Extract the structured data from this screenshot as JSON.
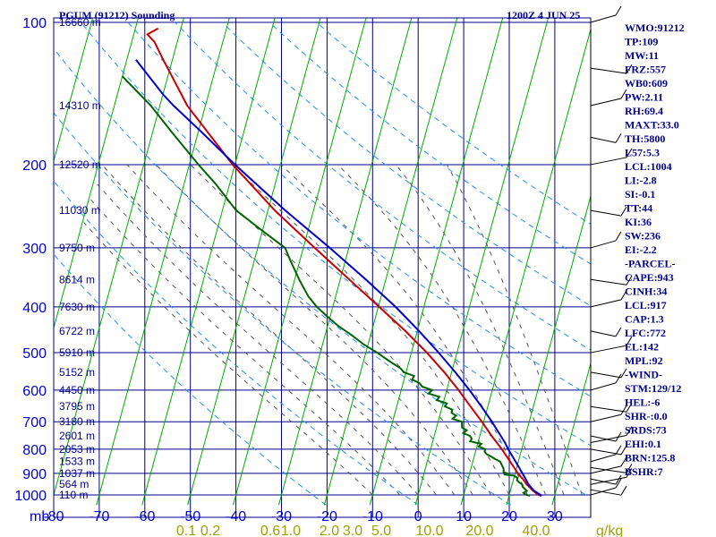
{
  "header": {
    "station_title": "PGUM (91212) Sounding",
    "valid_time": "1200Z  4 JUN 25"
  },
  "indices": [
    "WMO:91212",
    "TP:109",
    "MW:11",
    "FRZ:557",
    "WB0:609",
    "PW:2.11",
    "RH:69.4",
    "MAXT:33.0",
    "TH:5800",
    "L57:5.3",
    "LCL:1004",
    "LI:-2.8",
    "SI:-0.1",
    "TT:44",
    "KI:36",
    "SW:236",
    "EI:-2.2",
    "-PARCEL-",
    "CAPE:943",
    "CINH:34",
    "LCL:917",
    "CAP:1.3",
    "LFC:772",
    "EL:142",
    "MPL:92",
    "-WIND-",
    "STM:129/12",
    "HEL:-6",
    "SHR-:0.0",
    "SRDS:73",
    "EHI:0.1",
    "BRN:125.8",
    "BSHR:7"
  ],
  "colors": {
    "isobar": "#00008b",
    "isotherm": "#00aa00",
    "dry_adiabat": "#1e90ff",
    "moist_adiabat": "#555555",
    "mixing_ratio_label": "#a0a000",
    "temperature": "#cc0000",
    "dewpoint": "#006400",
    "parcel": "#0000cd",
    "wind_barb": "#000000"
  },
  "chart_data": {
    "type": "line",
    "subtype": "skew-T log-p sounding",
    "title": "PGUM (91212) Sounding",
    "x_unit": "mb",
    "y_axis_scale": "log pressure",
    "pressure_ticks": [
      100,
      200,
      300,
      400,
      500,
      600,
      700,
      800,
      900,
      1000
    ],
    "temperature_ticks": [
      -80,
      -70,
      -60,
      -50,
      -40,
      -30,
      -20,
      -10,
      0,
      10,
      20,
      30
    ],
    "temperature_range": [
      -80,
      40
    ],
    "pressure_range": [
      100,
      1050
    ],
    "height_labels": [
      {
        "p": 100,
        "label": "16660 m"
      },
      {
        "p": 150,
        "label": "14310 m"
      },
      {
        "p": 200,
        "label": "12520 m"
      },
      {
        "p": 250,
        "label": "11030 m"
      },
      {
        "p": 300,
        "label": "9750 m"
      },
      {
        "p": 350,
        "label": "8614 m"
      },
      {
        "p": 400,
        "label": "7630 m"
      },
      {
        "p": 450,
        "label": "6722 m"
      },
      {
        "p": 500,
        "label": "5910 m"
      },
      {
        "p": 550,
        "label": "5152 m"
      },
      {
        "p": 600,
        "label": "4450 m"
      },
      {
        "p": 650,
        "label": "3795 m"
      },
      {
        "p": 700,
        "label": "3180 m"
      },
      {
        "p": 750,
        "label": "2601 m"
      },
      {
        "p": 800,
        "label": "2053 m"
      },
      {
        "p": 850,
        "label": "1533 m"
      },
      {
        "p": 900,
        "label": "1037 m"
      },
      {
        "p": 950,
        "label": "564 m"
      },
      {
        "p": 1000,
        "label": "110 m"
      }
    ],
    "mixing_ratio_labels": [
      "0.1",
      "0.2",
      "0.6",
      "1.0",
      "2.0",
      "3.0",
      "5.0",
      "10.0",
      "20.0",
      "40.0"
    ],
    "mixing_ratio_unit": "g/kg",
    "isotherm_temps": [
      -160,
      -150,
      -140,
      -130,
      -120,
      -110,
      -100,
      -90,
      -80,
      -70,
      -60,
      -50,
      -40,
      -30,
      -20,
      -10,
      0,
      10,
      20,
      30,
      40
    ],
    "dry_adiabat_thetas": [
      250,
      270,
      290,
      310,
      330,
      350,
      370,
      390,
      410,
      430
    ],
    "moist_adiabat_bases": [
      -10,
      -4,
      0,
      4,
      8,
      12,
      16,
      20,
      24,
      28,
      32,
      36
    ],
    "series": [
      {
        "name": "temperature",
        "points": [
          [
            1004,
            27
          ],
          [
            1000,
            26.4
          ],
          [
            980,
            25
          ],
          [
            950,
            23.2
          ],
          [
            925,
            22
          ],
          [
            900,
            20.6
          ],
          [
            850,
            18.2
          ],
          [
            800,
            15.6
          ],
          [
            750,
            12.6
          ],
          [
            700,
            9.6
          ],
          [
            650,
            6.2
          ],
          [
            600,
            2.6
          ],
          [
            550,
            -1.6
          ],
          [
            500,
            -6.6
          ],
          [
            450,
            -12.6
          ],
          [
            400,
            -19.8
          ],
          [
            350,
            -28
          ],
          [
            300,
            -37.5
          ],
          [
            250,
            -48.5
          ],
          [
            200,
            -60.5
          ],
          [
            150,
            -74
          ],
          [
            120,
            -82
          ],
          [
            110,
            -85
          ],
          [
            106,
            -87
          ],
          [
            103,
            -85
          ]
        ]
      },
      {
        "name": "dewpoint",
        "points": [
          [
            1004,
            24.6
          ],
          [
            1000,
            23.8
          ],
          [
            990,
            23.0
          ],
          [
            980,
            23.6
          ],
          [
            970,
            23.0
          ],
          [
            960,
            22.4
          ],
          [
            950,
            22.2
          ],
          [
            940,
            21.4
          ],
          [
            930,
            20.8
          ],
          [
            920,
            20.8
          ],
          [
            910,
            19.8
          ],
          [
            905,
            17.6
          ],
          [
            900,
            18.2
          ],
          [
            895,
            17.4
          ],
          [
            880,
            17.2
          ],
          [
            860,
            16.4
          ],
          [
            850,
            16.0
          ],
          [
            840,
            14.8
          ],
          [
            830,
            13.8
          ],
          [
            820,
            12.6
          ],
          [
            810,
            12.0
          ],
          [
            800,
            12.0
          ],
          [
            790,
            10.4
          ],
          [
            780,
            10.8
          ],
          [
            770,
            8.2
          ],
          [
            760,
            8.4
          ],
          [
            750,
            7.8
          ],
          [
            740,
            6.2
          ],
          [
            730,
            6.8
          ],
          [
            720,
            5.6
          ],
          [
            710,
            5.4
          ],
          [
            700,
            5.2
          ],
          [
            690,
            3.0
          ],
          [
            680,
            3.6
          ],
          [
            670,
            2.4
          ],
          [
            660,
            2.4
          ],
          [
            650,
            0.6
          ],
          [
            640,
            0.8
          ],
          [
            630,
            -1.6
          ],
          [
            620,
            -1.2
          ],
          [
            610,
            -3.8
          ],
          [
            600,
            -3.2
          ],
          [
            590,
            -5.6
          ],
          [
            580,
            -6.4
          ],
          [
            570,
            -8.2
          ],
          [
            560,
            -8.0
          ],
          [
            550,
            -10.5
          ],
          [
            540,
            -11.4
          ],
          [
            520,
            -14.5
          ],
          [
            500,
            -17.5
          ],
          [
            480,
            -21
          ],
          [
            460,
            -24
          ],
          [
            440,
            -27.5
          ],
          [
            420,
            -30.5
          ],
          [
            400,
            -33.5
          ],
          [
            380,
            -36
          ],
          [
            360,
            -38
          ],
          [
            350,
            -39
          ],
          [
            320,
            -42
          ],
          [
            300,
            -44
          ],
          [
            280,
            -49
          ],
          [
            250,
            -57
          ],
          [
            220,
            -63
          ],
          [
            200,
            -68
          ],
          [
            170,
            -76
          ],
          [
            150,
            -82
          ],
          [
            130,
            -90
          ]
        ]
      },
      {
        "name": "parcel",
        "points": [
          [
            1004,
            27.2
          ],
          [
            980,
            25.2
          ],
          [
            950,
            23.6
          ],
          [
            917,
            22.3
          ],
          [
            900,
            21.6
          ],
          [
            850,
            19.4
          ],
          [
            800,
            17.0
          ],
          [
            772,
            15.8
          ],
          [
            750,
            14.6
          ],
          [
            700,
            11.8
          ],
          [
            650,
            8.6
          ],
          [
            600,
            5.0
          ],
          [
            550,
            0.8
          ],
          [
            500,
            -4.0
          ],
          [
            450,
            -9.6
          ],
          [
            400,
            -16.2
          ],
          [
            350,
            -24.4
          ],
          [
            300,
            -34.2
          ],
          [
            250,
            -46.2
          ],
          [
            200,
            -60.0
          ],
          [
            170,
            -69.5
          ],
          [
            150,
            -77.0
          ],
          [
            142,
            -80.0
          ],
          [
            120,
            -88.0
          ]
        ]
      }
    ],
    "wind_barb_pressures": [
      1000,
      975,
      950,
      925,
      900,
      875,
      850,
      800,
      775,
      750,
      700,
      650,
      600,
      550,
      500,
      450,
      400,
      350,
      300,
      250,
      200,
      175,
      150,
      125,
      100
    ]
  }
}
